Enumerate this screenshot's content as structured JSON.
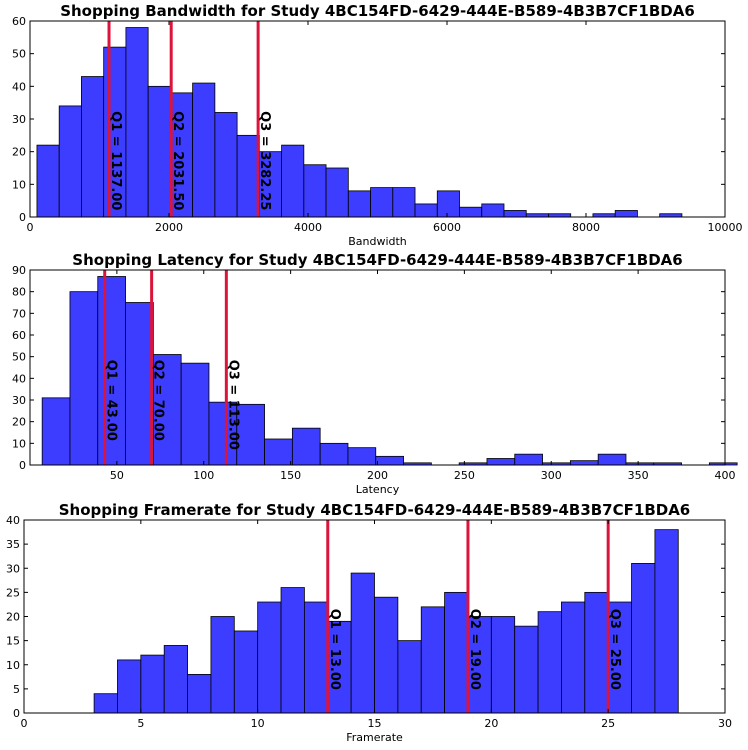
{
  "colors": {
    "bar": "#3333ff",
    "bar_edge": "#000000",
    "quartile_line": "#dc143c"
  },
  "chart_data": [
    {
      "type": "bar",
      "title": "Shopping Bandwidth for Study 4BC154FD-6429-444E-B589-4B3B7CF1BDA6",
      "xlabel": "Bandwidth",
      "ylabel": "",
      "xlim": [
        0,
        10000
      ],
      "ylim": [
        0,
        60
      ],
      "xticks": [
        "0",
        "2000",
        "4000",
        "6000",
        "8000",
        "10000"
      ],
      "yticks": [
        "0",
        "10",
        "20",
        "30",
        "40",
        "50",
        "60"
      ],
      "bin_edges": [
        100,
        420,
        740,
        1060,
        1380,
        1700,
        2020,
        2340,
        2660,
        2980,
        3300,
        3620,
        3940,
        4260,
        4580,
        4900,
        5220,
        5540,
        5860,
        6180,
        6500,
        6820,
        7140,
        7460,
        7780,
        8100,
        8420,
        8740,
        9060
      ],
      "values": [
        22,
        34,
        43,
        52,
        58,
        40,
        38,
        41,
        32,
        25,
        20,
        22,
        16,
        15,
        8,
        9,
        9,
        4,
        8,
        3,
        4,
        2,
        1,
        1,
        0,
        1,
        2,
        0,
        1
      ],
      "quartiles": [
        {
          "label": "Q1 = 1137.00",
          "x": 1137.0
        },
        {
          "label": "Q2 = 2031.50",
          "x": 2031.5
        },
        {
          "label": "Q3 = 3282.25",
          "x": 3282.25
        }
      ]
    },
    {
      "type": "bar",
      "title": "Shopping Latency for Study 4BC154FD-6429-444E-B589-4B3B7CF1BDA6",
      "xlabel": "Latency",
      "ylabel": "",
      "xlim": [
        0,
        400
      ],
      "ylim": [
        0,
        90
      ],
      "xticks": [
        "50",
        "100",
        "150",
        "200",
        "250",
        "300",
        "350",
        "400"
      ],
      "yticks": [
        "0",
        "10",
        "20",
        "30",
        "40",
        "50",
        "60",
        "70",
        "80",
        "90"
      ],
      "bin_edges": [
        7,
        23,
        39,
        55,
        71,
        87,
        103,
        119,
        135,
        151,
        167,
        183,
        199,
        215,
        231,
        247,
        263,
        279,
        295,
        311,
        327,
        343,
        359,
        375,
        391
      ],
      "values": [
        31,
        80,
        87,
        75,
        51,
        47,
        29,
        28,
        12,
        17,
        10,
        8,
        4,
        1,
        0,
        1,
        3,
        5,
        1,
        2,
        5,
        1,
        1,
        0,
        1
      ],
      "quartiles": [
        {
          "label": "Q1 = 43.00",
          "x": 43.0
        },
        {
          "label": "Q2 = 70.00",
          "x": 70.0
        },
        {
          "label": "Q3 = 113.00",
          "x": 113.0
        }
      ]
    },
    {
      "type": "bar",
      "title": "Shopping Framerate for Study 4BC154FD-6429-444E-B589-4B3B7CF1BDA6",
      "xlabel": "Framerate",
      "ylabel": "",
      "xlim": [
        0,
        30
      ],
      "ylim": [
        0,
        40
      ],
      "xticks": [
        "0",
        "5",
        "10",
        "15",
        "20",
        "25",
        "30"
      ],
      "yticks": [
        "0",
        "5",
        "10",
        "15",
        "20",
        "25",
        "30",
        "35",
        "40"
      ],
      "bin_edges": [
        3,
        4,
        5,
        6,
        7,
        8,
        9,
        10,
        11,
        12,
        13,
        14,
        15,
        16,
        17,
        18,
        19,
        20,
        21,
        22,
        23,
        24,
        25,
        26,
        27,
        28
      ],
      "values": [
        4,
        11,
        12,
        14,
        8,
        20,
        17,
        23,
        26,
        23,
        19,
        29,
        24,
        15,
        22,
        25,
        20,
        20,
        18,
        21,
        23,
        25,
        23,
        31,
        38
      ],
      "quartiles": [
        {
          "label": "Q1 = 13.00",
          "x": 13.0
        },
        {
          "label": "Q2 = 19.00",
          "x": 19.0
        },
        {
          "label": "Q3 = 25.00",
          "x": 25.0
        }
      ]
    }
  ]
}
